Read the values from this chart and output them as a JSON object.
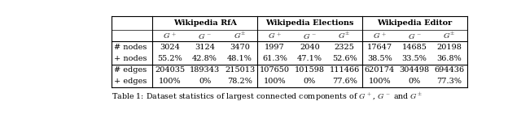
{
  "title": "Table 1: Dataset statistics of largest connected components of $G^+$, $G^-$ and $G^{\\pm}$",
  "col_groups": [
    "Wikipedia RfA",
    "Wikipedia Elections",
    "Wikipedia Editor"
  ],
  "sub_cols": [
    "$G^+$",
    "$G^-$",
    "$G^{\\pm}$"
  ],
  "row_labels": [
    "# nodes",
    "+ nodes",
    "# edges",
    "+ edges"
  ],
  "data": [
    [
      "3024",
      "3124",
      "3470",
      "1997",
      "2040",
      "2325",
      "17647",
      "14685",
      "20198"
    ],
    [
      "55.2%",
      "42.8%",
      "48.1%",
      "61.3%",
      "47.1%",
      "52.6%",
      "38.5%",
      "33.5%",
      "36.8%"
    ],
    [
      "204035",
      "189343",
      "215013",
      "107650",
      "101598",
      "111466",
      "620174",
      "304498",
      "694436"
    ],
    [
      "100%",
      "0%",
      "78.2%",
      "100%",
      "0%",
      "77.6%",
      "100%",
      "0%",
      "77.3%"
    ]
  ],
  "figsize": [
    6.4,
    1.41
  ],
  "dpi": 100,
  "fontsize": 7.0,
  "title_fontsize": 6.8
}
